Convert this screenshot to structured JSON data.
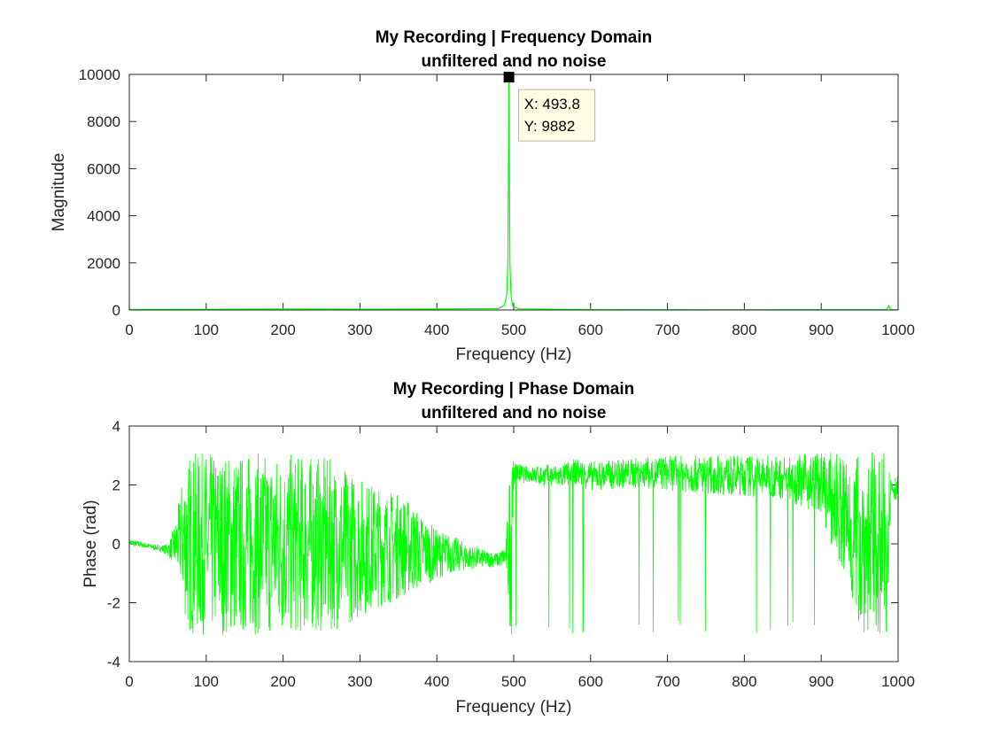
{
  "colors": {
    "series": "#00ff00",
    "axes": "#262626",
    "datatip_bg": "#ffffe6",
    "datatip_border": "#b8b8a6"
  },
  "chart_data": [
    {
      "type": "line",
      "title": "My Recording | Frequency Domain",
      "subtitle": "unfiltered and no noise",
      "xlabel": "Frequency (Hz)",
      "ylabel": "Magnitude",
      "xlim": [
        0,
        1000
      ],
      "ylim": [
        0,
        10000
      ],
      "xticks": [
        0,
        100,
        200,
        300,
        400,
        500,
        600,
        700,
        800,
        900,
        1000
      ],
      "yticks": [
        0,
        2000,
        4000,
        6000,
        8000,
        10000
      ],
      "xtick_labels": [
        "0",
        "100",
        "200",
        "300",
        "400",
        "500",
        "600",
        "700",
        "800",
        "900",
        "1000"
      ],
      "ytick_labels": [
        "0",
        "2000",
        "4000",
        "6000",
        "8000",
        "10000"
      ],
      "grid": false,
      "series": [
        {
          "x": [
            0,
            100,
            200,
            300,
            400,
            480,
            488,
            491,
            492.5,
            493.8,
            495,
            496.5,
            499,
            507,
            600,
            700,
            800,
            900,
            985,
            988,
            990,
            993,
            1000
          ],
          "y": [
            25,
            30,
            45,
            35,
            40,
            60,
            200,
            700,
            2200,
            9882,
            2000,
            600,
            150,
            50,
            20,
            15,
            12,
            15,
            20,
            180,
            30,
            15,
            10
          ]
        }
      ],
      "datatip": {
        "x_text": "X: 493.8",
        "y_text": "Y: 9882",
        "x": 493.8,
        "y": 9882
      }
    },
    {
      "type": "line",
      "title": "My Recording | Phase Domain",
      "subtitle": "unfiltered and no noise",
      "xlabel": "Frequency (Hz)",
      "ylabel": "Phase (rad)",
      "xlim": [
        0,
        1000
      ],
      "ylim": [
        -4,
        4
      ],
      "xticks": [
        0,
        100,
        200,
        300,
        400,
        500,
        600,
        700,
        800,
        900,
        1000
      ],
      "yticks": [
        -4,
        -2,
        0,
        2,
        4
      ],
      "xtick_labels": [
        "0",
        "100",
        "200",
        "300",
        "400",
        "500",
        "600",
        "700",
        "800",
        "900",
        "1000"
      ],
      "ytick_labels": [
        "-4",
        "-2",
        "0",
        "2",
        "4"
      ],
      "grid": false,
      "series": [
        {
          "x": [
            0,
            5,
            10,
            20,
            30,
            40,
            50,
            55,
            60,
            65,
            70,
            75,
            80,
            90,
            100,
            120,
            140,
            160,
            180,
            200,
            220,
            240,
            260,
            280,
            300,
            320,
            340,
            360,
            380,
            400,
            420,
            440,
            460,
            480,
            490,
            495,
            500,
            520,
            540,
            560,
            580,
            600,
            650,
            700,
            750,
            800,
            850,
            900,
            950,
            980,
            985,
            990,
            1000
          ],
          "ymin": [
            -0.05,
            -0.1,
            -0.1,
            -0.15,
            -0.2,
            -0.25,
            -0.4,
            -0.6,
            -0.9,
            -1.2,
            -2.0,
            -3.0,
            -3.1,
            -3.1,
            -3.1,
            -3.1,
            -3.1,
            -3.1,
            -3.1,
            -3.1,
            -3.1,
            -3.0,
            -3.0,
            -2.8,
            -2.5,
            -2.2,
            -2.0,
            -1.8,
            -1.5,
            -1.2,
            -1.0,
            -0.9,
            -0.8,
            -0.8,
            -0.8,
            -3.1,
            2.0,
            2.1,
            1.9,
            1.9,
            2.0,
            1.8,
            1.9,
            1.8,
            1.7,
            1.6,
            1.5,
            1.0,
            -3.0,
            -3.1,
            -3.1,
            1.4,
            1.5
          ],
          "ymax": [
            0.15,
            0.15,
            0.1,
            0.05,
            0.0,
            -0.05,
            0.0,
            0.3,
            0.8,
            1.5,
            2.5,
            3.0,
            3.1,
            3.1,
            3.1,
            3.1,
            3.1,
            3.1,
            3.1,
            3.1,
            3.0,
            3.0,
            2.9,
            2.6,
            2.3,
            2.0,
            1.8,
            1.6,
            1.0,
            0.5,
            0.3,
            0.0,
            -0.2,
            -0.3,
            0.0,
            2.8,
            2.8,
            2.6,
            2.7,
            2.7,
            2.9,
            2.8,
            2.9,
            3.0,
            3.0,
            3.0,
            3.0,
            3.1,
            3.1,
            3.1,
            3.1,
            2.5,
            2.3
          ]
        }
      ]
    }
  ]
}
